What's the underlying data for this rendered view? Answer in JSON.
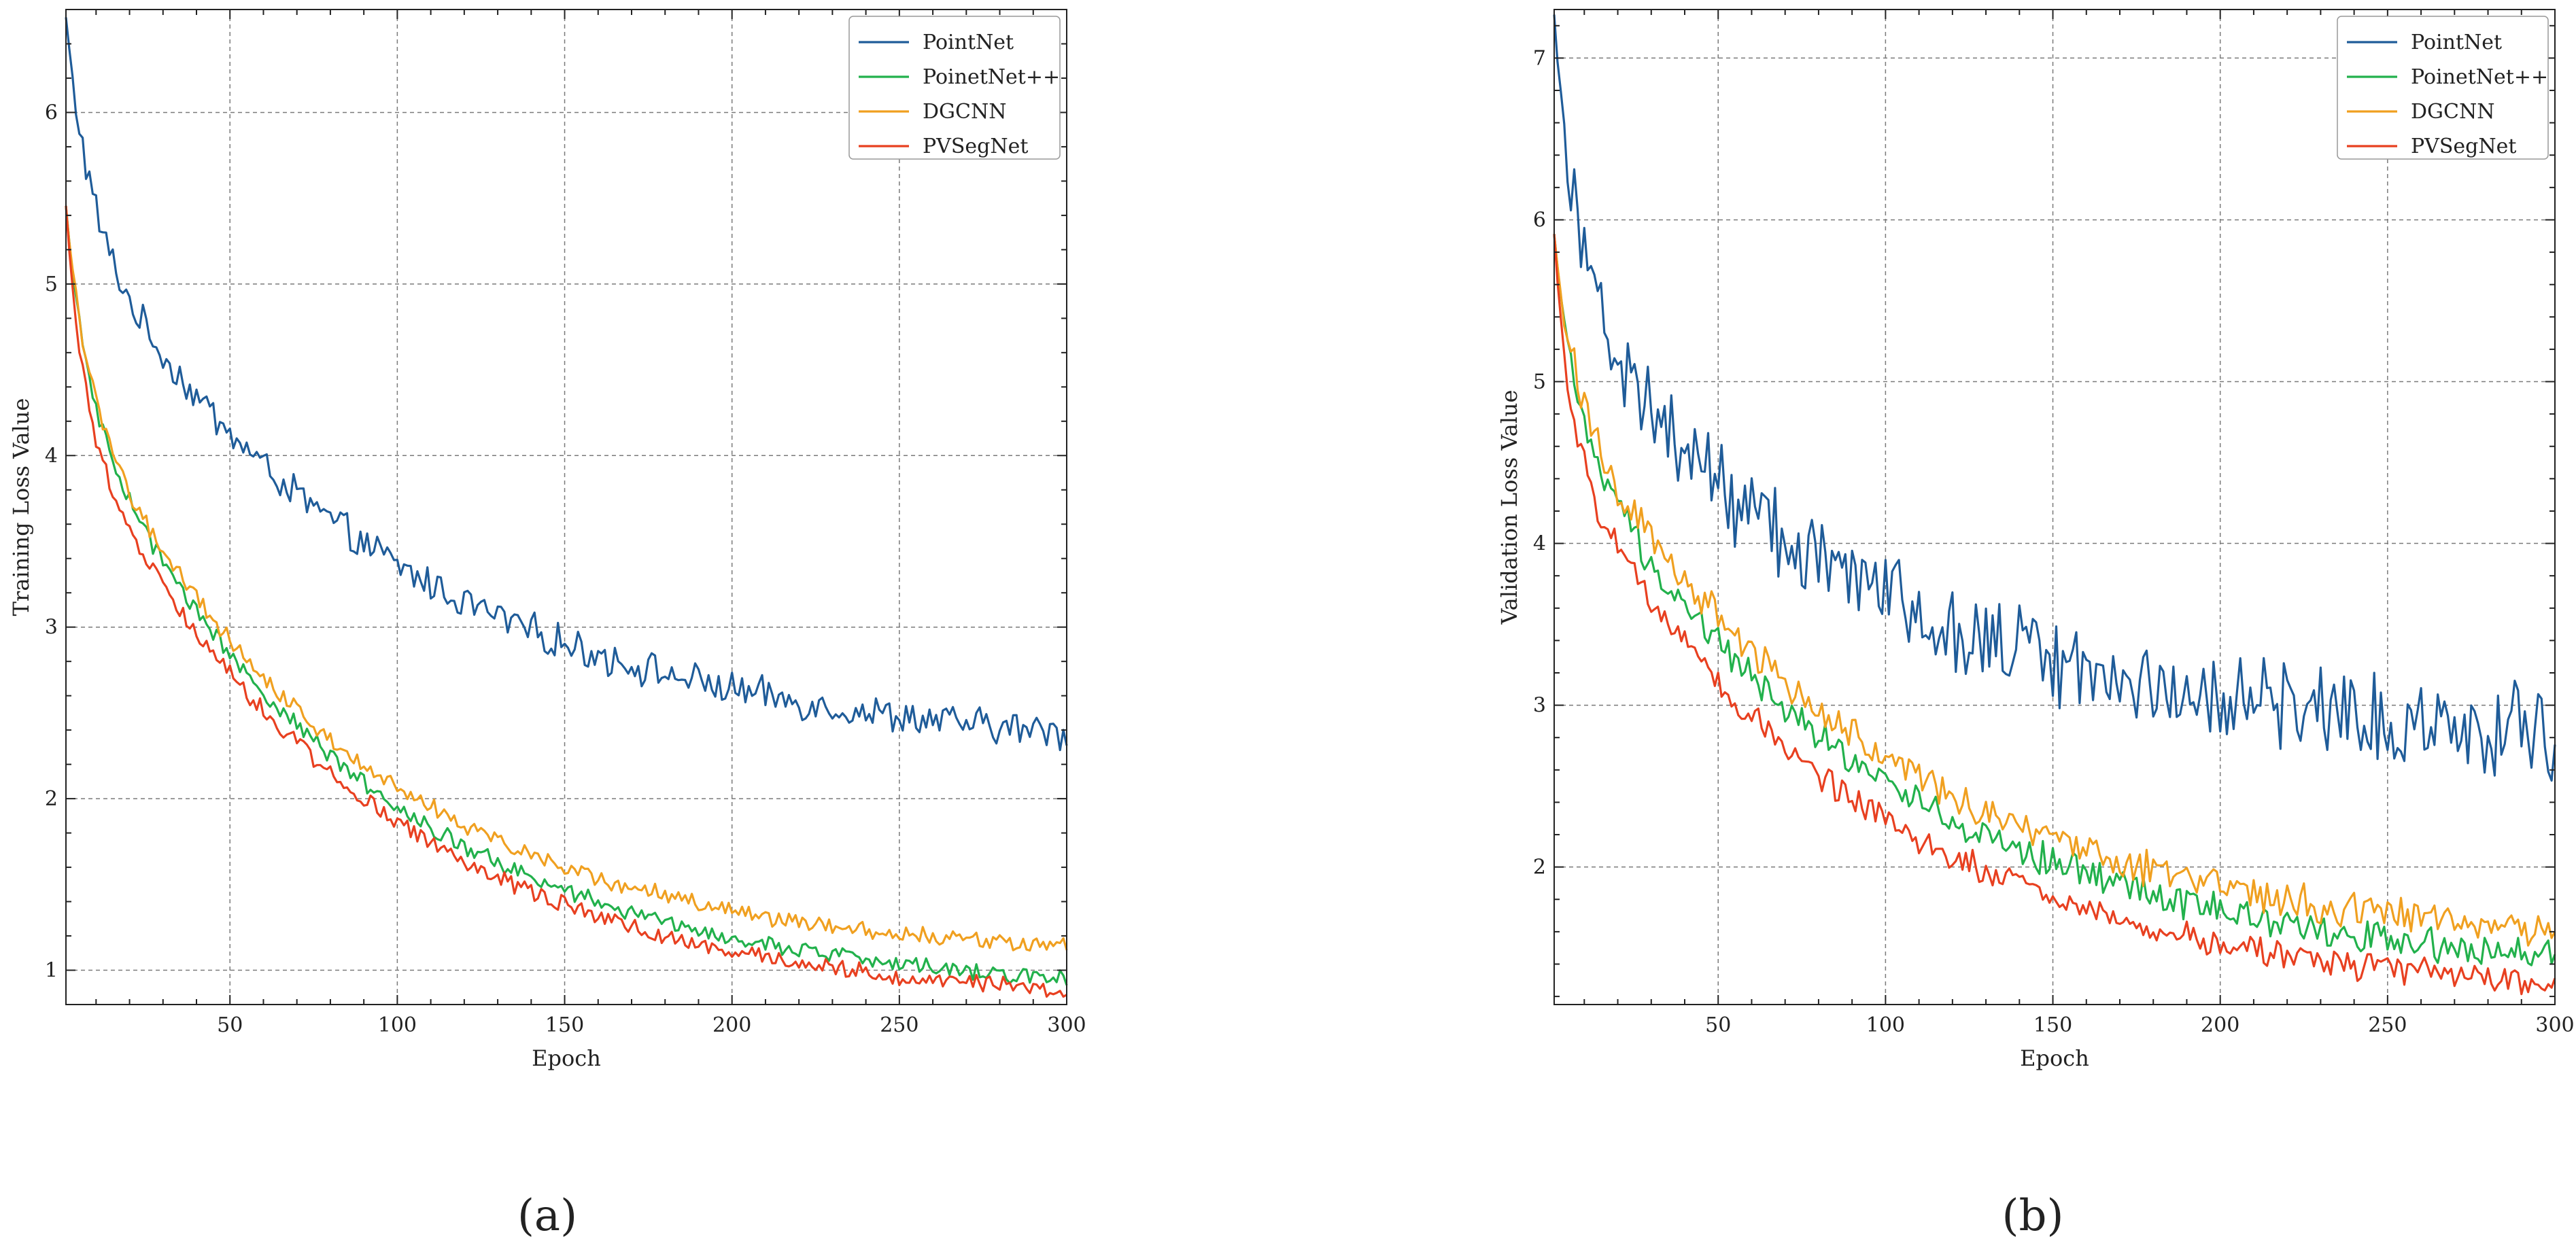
{
  "chart_data": [
    {
      "type": "line",
      "panel_label": "(a)",
      "title": "",
      "xlabel": "Epoch",
      "ylabel": "Training Loss Value",
      "xlim": [
        1,
        300
      ],
      "ylim": [
        0.8,
        6.6
      ],
      "x_ticks": [
        50,
        100,
        150,
        200,
        250,
        300
      ],
      "x_tick_labels": [
        "50",
        "100",
        "150",
        "200",
        "250",
        "300"
      ],
      "y_ticks": [
        1,
        2,
        3,
        4,
        5,
        6
      ],
      "y_tick_labels": [
        "1",
        "2",
        "3",
        "4",
        "5",
        "6"
      ],
      "grid": true,
      "legend_position": "top-right",
      "series": [
        {
          "name": "PointNet",
          "color": "#1f5c99",
          "curve": {
            "start": 6.55,
            "end": 2.25,
            "tau": 95,
            "fast_amp": 1.15,
            "fast_tau": 7,
            "noise": 0.09
          }
        },
        {
          "name": "PoinetNet++",
          "color": "#22b14c",
          "curve": {
            "start": 5.45,
            "end": 0.85,
            "tau": 85,
            "fast_amp": 1.05,
            "fast_tau": 6,
            "noise": 0.045
          }
        },
        {
          "name": "DGCNN",
          "color": "#f0a020",
          "curve": {
            "start": 5.45,
            "end": 1.05,
            "tau": 82,
            "fast_amp": 1.0,
            "fast_tau": 6,
            "noise": 0.045
          }
        },
        {
          "name": "PVSegNet",
          "color": "#e84020",
          "curve": {
            "start": 5.45,
            "end": 0.78,
            "tau": 85,
            "fast_amp": 1.2,
            "fast_tau": 5,
            "noise": 0.045
          }
        }
      ]
    },
    {
      "type": "line",
      "panel_label": "(b)",
      "title": "",
      "xlabel": "Epoch",
      "ylabel": "Validation Loss Value",
      "xlim": [
        1,
        300
      ],
      "ylim": [
        1.15,
        7.3
      ],
      "x_ticks": [
        50,
        100,
        150,
        200,
        250,
        300
      ],
      "x_tick_labels": [
        "50",
        "100",
        "150",
        "200",
        "250",
        "300"
      ],
      "y_ticks": [
        2,
        3,
        4,
        5,
        6,
        7
      ],
      "y_tick_labels": [
        "2",
        "3",
        "4",
        "5",
        "6",
        "7"
      ],
      "grid": true,
      "legend_position": "top-right",
      "series": [
        {
          "name": "PointNet",
          "color": "#1f5c99",
          "curve": {
            "start": 7.25,
            "end": 2.75,
            "tau": 90,
            "fast_amp": 1.7,
            "fast_tau": 8,
            "noise": 0.25
          }
        },
        {
          "name": "PoinetNet++",
          "color": "#22b14c",
          "curve": {
            "start": 5.9,
            "end": 1.3,
            "tau": 95,
            "fast_amp": 1.1,
            "fast_tau": 6,
            "noise": 0.09
          }
        },
        {
          "name": "DGCNN",
          "color": "#f0a020",
          "curve": {
            "start": 5.9,
            "end": 1.45,
            "tau": 95,
            "fast_amp": 0.95,
            "fast_tau": 6,
            "noise": 0.1
          }
        },
        {
          "name": "PVSegNet",
          "color": "#e84020",
          "curve": {
            "start": 5.9,
            "end": 1.15,
            "tau": 90,
            "fast_amp": 1.3,
            "fast_tau": 5,
            "noise": 0.08
          }
        }
      ]
    }
  ]
}
